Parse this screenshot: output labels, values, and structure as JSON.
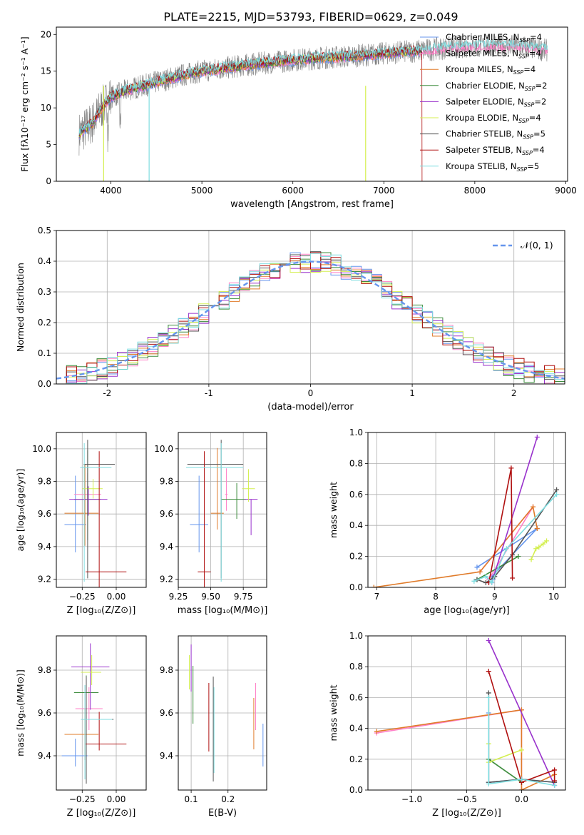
{
  "title": "PLATE=2215, MJD=53793, FIBERID=0629, z=0.049",
  "colors": {
    "Chabrier MILES": "#6495ed",
    "Salpeter MILES": "#ff82c8",
    "Kroupa MILES": "#e07b2a",
    "Chabrier ELODIE": "#3c8c3c",
    "Salpeter ELODIE": "#9932cc",
    "Kroupa ELODIE": "#d4ef50",
    "Chabrier STELIB": "#555555",
    "Salpeter STELIB": "#b01010",
    "Kroupa STELIB": "#7fdde0"
  },
  "chart_data": [
    {
      "id": "spectrum",
      "type": "line",
      "xlabel": "wavelength [Angstrom, rest frame]",
      "ylabel": "Flux [fλ10⁻¹⁷ erg cm⁻² s⁻¹ A⁻¹]",
      "xlim": [
        3400,
        9020
      ],
      "ylim": [
        0,
        21
      ],
      "xticks": [
        4000,
        5000,
        6000,
        7000,
        8000,
        9000
      ],
      "yticks": [
        0,
        5,
        10,
        15,
        20
      ],
      "legend_position": "top-right",
      "legend": [
        {
          "name": "Chabrier MILES, N",
          "sub": "SSP",
          "tail": "=4"
        },
        {
          "name": "Salpeter MILES, N",
          "sub": "SSP",
          "tail": "=4"
        },
        {
          "name": "Kroupa MILES, N",
          "sub": "SSP",
          "tail": "=4"
        },
        {
          "name": "Chabrier ELODIE, N",
          "sub": "SSP",
          "tail": "=2"
        },
        {
          "name": "Salpeter ELODIE, N",
          "sub": "SSP",
          "tail": "=2"
        },
        {
          "name": "Kroupa ELODIE, N",
          "sub": "SSP",
          "tail": "=4"
        },
        {
          "name": "Chabrier STELIB, N",
          "sub": "SSP",
          "tail": "=5"
        },
        {
          "name": "Salpeter STELIB, N",
          "sub": "SSP",
          "tail": "=4"
        },
        {
          "name": "Kroupa STELIB, N",
          "sub": "SSP",
          "tail": "=5"
        }
      ],
      "continuum": {
        "x": [
          3650,
          3800,
          3900,
          4000,
          4200,
          4500,
          4800,
          5000,
          5300,
          5600,
          6000,
          6300,
          6600,
          7000,
          7400,
          7800,
          8200,
          8500,
          8800
        ],
        "y": [
          6.5,
          8,
          10,
          11.5,
          12.5,
          13.5,
          14.5,
          15,
          15.5,
          16,
          16.5,
          16.8,
          17,
          17.4,
          17.8,
          18.3,
          18.5,
          18.4,
          17.8
        ]
      },
      "data_range": [
        3650,
        8800
      ],
      "model_range": [
        3650,
        7420
      ]
    },
    {
      "id": "residuals",
      "type": "line",
      "xlabel": "(data-model)/error",
      "ylabel": "Normed distribution",
      "xlim": [
        -2.5,
        2.5
      ],
      "ylim": [
        0,
        0.5
      ],
      "xticks": [
        -2,
        -1,
        0,
        1,
        2
      ],
      "yticks": [
        0.0,
        0.1,
        0.2,
        0.3,
        0.4,
        0.5
      ],
      "legend_position": "top-right",
      "legend": [
        "𝒩(0, 1)"
      ],
      "gaussian": {
        "mean": 0,
        "sigma": 1
      }
    },
    {
      "id": "age-vs-Z",
      "type": "scatter",
      "xlabel": "Z [log₁₀(Z/Z⊙)]",
      "ylabel": "age  [log₁₀(age/yr)]",
      "xlim": [
        -0.44,
        0.22
      ],
      "ylim": [
        9.15,
        10.1
      ],
      "xticks": [
        -0.25,
        0.0
      ],
      "xtick_labels": [
        "−0.25",
        "0.00"
      ],
      "yticks": [
        9.2,
        9.4,
        9.6,
        9.8,
        10.0
      ],
      "points": [
        {
          "model": "Chabrier MILES",
          "x": -0.3,
          "xerr": [
            0.08,
            0.08
          ],
          "y": 9.535,
          "yerr": [
            0.17,
            0.3
          ]
        },
        {
          "model": "Salpeter MILES",
          "x": -0.21,
          "xerr": [
            0.1,
            0.1
          ],
          "y": 9.72,
          "yerr": [
            0.1,
            0.13
          ]
        },
        {
          "model": "Kroupa MILES",
          "x": -0.23,
          "xerr": [
            0.15,
            0.1
          ],
          "y": 9.605,
          "yerr": [
            0.2,
            0.3
          ]
        },
        {
          "model": "Chabrier ELODIE",
          "x": -0.21,
          "xerr": [
            0.1,
            0.1
          ],
          "y": 9.69,
          "yerr": [
            0.25,
            0.3
          ]
        },
        {
          "model": "Salpeter ELODIE",
          "x": -0.205,
          "xerr": [
            0.14,
            0.14
          ],
          "y": 9.69,
          "yerr": [
            0.1,
            0.08
          ]
        },
        {
          "model": "Kroupa ELODIE",
          "x": -0.17,
          "xerr": [
            0.08,
            0.07
          ],
          "y": 9.755,
          "yerr": [
            0.06,
            0.06
          ]
        },
        {
          "model": "Chabrier STELIB",
          "x": -0.21,
          "xerr": [
            0.03,
            0.2
          ],
          "y": 9.905,
          "yerr": [
            0.7,
            0.15
          ]
        },
        {
          "model": "Salpeter STELIB",
          "x": -0.125,
          "xerr": [
            0.1,
            0.2
          ],
          "y": 9.245,
          "yerr": [
            0.3,
            0.74
          ]
        },
        {
          "model": "Kroupa STELIB",
          "x": -0.235,
          "xerr": [
            0.03,
            0.2
          ],
          "y": 9.885,
          "yerr": [
            0.7,
            0.15
          ]
        }
      ]
    },
    {
      "id": "age-vs-mass",
      "type": "scatter",
      "xlabel": "mass [log₁₀(M/M⊙)]",
      "ylabel": "",
      "xlim": [
        9.25,
        9.93
      ],
      "ylim": [
        9.15,
        10.1
      ],
      "xticks": [
        9.25,
        9.5,
        9.75
      ],
      "xtick_labels": [
        "9.25",
        "9.50",
        "9.75"
      ],
      "yticks": [
        9.2,
        9.4,
        9.6,
        9.8,
        10.0
      ],
      "points": [
        {
          "model": "Chabrier MILES",
          "x": 9.41,
          "xerr": [
            0.07,
            0.07
          ],
          "y": 9.535,
          "yerr": [
            0.17,
            0.3
          ]
        },
        {
          "model": "Salpeter MILES",
          "x": 9.62,
          "xerr": [
            0.01,
            0.01
          ],
          "y": 9.72,
          "yerr": [
            0.1,
            0.16
          ]
        },
        {
          "model": "Kroupa MILES",
          "x": 9.55,
          "xerr": [
            0.05,
            0.05
          ],
          "y": 9.605,
          "yerr": [
            0.1,
            0.4
          ]
        },
        {
          "model": "Chabrier ELODIE",
          "x": 9.7,
          "xerr": [
            0.12,
            0.07
          ],
          "y": 9.69,
          "yerr": [
            0.12,
            0.1
          ]
        },
        {
          "model": "Salpeter ELODIE",
          "x": 9.81,
          "xerr": [
            0.05,
            0.05
          ],
          "y": 9.69,
          "yerr": [
            0.22,
            0.0
          ]
        },
        {
          "model": "Kroupa ELODIE",
          "x": 9.79,
          "xerr": [
            0.05,
            0.05
          ],
          "y": 9.755,
          "yerr": [
            0.08,
            0.12
          ]
        },
        {
          "model": "Chabrier STELIB",
          "x": 9.58,
          "xerr": [
            0.26,
            0.17
          ],
          "y": 9.905,
          "yerr": [
            0.7,
            0.15
          ]
        },
        {
          "model": "Salpeter STELIB",
          "x": 9.45,
          "xerr": [
            0.05,
            0.05
          ],
          "y": 9.245,
          "yerr": [
            0.3,
            0.74
          ]
        },
        {
          "model": "Kroupa STELIB",
          "x": 9.58,
          "xerr": [
            0.27,
            0.17
          ],
          "y": 9.885,
          "yerr": [
            0.7,
            0.15
          ]
        }
      ]
    },
    {
      "id": "massweight-vs-age",
      "type": "line",
      "xlabel": "age  [log₁₀(age/yr)]",
      "ylabel": "mass weight",
      "xlim": [
        6.85,
        10.2
      ],
      "ylim": [
        0,
        1.0
      ],
      "xticks": [
        7,
        8,
        9,
        10
      ],
      "yticks": [
        0.0,
        0.2,
        0.4,
        0.6,
        0.8,
        1.0
      ],
      "series": [
        {
          "model": "Chabrier MILES",
          "x": [
            8.7,
            9.72,
            8.95,
            8.97
          ],
          "y": [
            0.13,
            0.38,
            0.07,
            0.05
          ]
        },
        {
          "model": "Salpeter MILES",
          "x": [
            8.75,
            9.65,
            8.9
          ],
          "y": [
            0.1,
            0.52,
            0.05
          ]
        },
        {
          "model": "Kroupa MILES",
          "x": [
            6.95,
            8.75,
            9.65,
            9.72
          ],
          "y": [
            0.0,
            0.1,
            0.52,
            0.38
          ]
        },
        {
          "model": "Chabrier ELODIE",
          "x": [
            8.7,
            9.4
          ],
          "y": [
            0.05,
            0.2
          ]
        },
        {
          "model": "Salpeter ELODIE",
          "x": [
            8.95,
            9.72
          ],
          "y": [
            0.03,
            0.97
          ]
        },
        {
          "model": "Kroupa ELODIE",
          "x": [
            9.62,
            9.7,
            9.75,
            9.82,
            9.88
          ],
          "y": [
            0.18,
            0.25,
            0.26,
            0.28,
            0.3
          ]
        },
        {
          "model": "Chabrier STELIB",
          "x": [
            8.7,
            8.85,
            9.0,
            9.3,
            10.05
          ],
          "y": [
            0.05,
            0.03,
            0.07,
            0.21,
            0.63
          ]
        },
        {
          "model": "Salpeter STELIB",
          "x": [
            8.9,
            9.28,
            9.3
          ],
          "y": [
            0.03,
            0.77,
            0.06
          ]
        },
        {
          "model": "Kroupa STELIB",
          "x": [
            8.65,
            8.85,
            8.95,
            9.2,
            10.05
          ],
          "y": [
            0.04,
            0.07,
            0.03,
            0.25,
            0.6
          ]
        }
      ]
    },
    {
      "id": "mass-vs-Z",
      "type": "scatter",
      "xlabel": "Z [log₁₀(Z/Z⊙)]",
      "ylabel": "mass [log₁₀(M/M⊙)]",
      "xlim": [
        -0.44,
        0.22
      ],
      "ylim": [
        9.24,
        9.96
      ],
      "xticks": [
        -0.25,
        0.0
      ],
      "xtick_labels": [
        "−0.25",
        "0.00"
      ],
      "yticks": [
        9.4,
        9.6,
        9.8
      ],
      "points": [
        {
          "model": "Chabrier MILES",
          "x": -0.3,
          "xerr": [
            0.1,
            0.09
          ],
          "y": 9.4,
          "yerr": [
            0.05,
            0.08
          ]
        },
        {
          "model": "Salpeter MILES",
          "x": -0.2,
          "xerr": [
            0.1,
            0.1
          ],
          "y": 9.62,
          "yerr": [
            0.1,
            0.1
          ]
        },
        {
          "model": "Kroupa MILES",
          "x": -0.23,
          "xerr": [
            0.15,
            0.1
          ],
          "y": 9.5,
          "yerr": [
            0.12,
            0.12
          ]
        },
        {
          "model": "Chabrier ELODIE",
          "x": -0.22,
          "xerr": [
            0.09,
            0.09
          ],
          "y": 9.695,
          "yerr": [
            0.1,
            0.08
          ]
        },
        {
          "model": "Salpeter ELODIE",
          "x": -0.19,
          "xerr": [
            0.14,
            0.14
          ],
          "y": 9.815,
          "yerr": [
            0.2,
            0.11
          ]
        },
        {
          "model": "Kroupa ELODIE",
          "x": -0.18,
          "xerr": [
            0.08,
            0.07
          ],
          "y": 9.79,
          "yerr": [
            0.06,
            0.08
          ]
        },
        {
          "model": "Chabrier STELIB",
          "x": -0.22,
          "xerr": [
            0.03,
            0.2
          ],
          "y": 9.57,
          "yerr": [
            0.3,
            0.2
          ]
        },
        {
          "model": "Salpeter STELIB",
          "x": -0.125,
          "xerr": [
            0.1,
            0.2
          ],
          "y": 9.455,
          "yerr": [
            0.03,
            0.15
          ]
        },
        {
          "model": "Kroupa STELIB",
          "x": -0.23,
          "xerr": [
            0.03,
            0.2
          ],
          "y": 9.57,
          "yerr": [
            0.28,
            0.16
          ]
        }
      ]
    },
    {
      "id": "mass-vs-EBV",
      "type": "scatter",
      "xlabel": "E(B-V)",
      "ylabel": "",
      "xlim": [
        0.065,
        0.305
      ],
      "ylim": [
        9.24,
        9.96
      ],
      "xticks": [
        0.1,
        0.2
      ],
      "xtick_labels": [
        "0.1",
        "0.2"
      ],
      "yticks": [
        9.4,
        9.6,
        9.8
      ],
      "points": [
        {
          "model": "Chabrier MILES",
          "x": 0.295,
          "y": 9.45,
          "yerr": [
            0.1,
            0.1
          ]
        },
        {
          "model": "Salpeter MILES",
          "x": 0.275,
          "y": 9.62,
          "yerr": [
            0.1,
            0.12
          ]
        },
        {
          "model": "Kroupa MILES",
          "x": 0.27,
          "y": 9.55,
          "yerr": [
            0.12,
            0.12
          ]
        },
        {
          "model": "Chabrier ELODIE",
          "x": 0.105,
          "y": 9.68,
          "yerr": [
            0.13,
            0.14
          ]
        },
        {
          "model": "Salpeter ELODIE",
          "x": 0.1,
          "y": 9.82,
          "yerr": [
            0.12,
            0.1
          ]
        },
        {
          "model": "Kroupa ELODIE",
          "x": 0.095,
          "y": 9.79,
          "yerr": [
            0.08,
            0.08
          ]
        },
        {
          "model": "Chabrier STELIB",
          "x": 0.16,
          "y": 9.57,
          "yerr": [
            0.29,
            0.2
          ]
        },
        {
          "model": "Salpeter STELIB",
          "x": 0.148,
          "y": 9.58,
          "yerr": [
            0.16,
            0.16
          ]
        },
        {
          "model": "Kroupa STELIB",
          "x": 0.162,
          "y": 9.57,
          "yerr": [
            0.25,
            0.15
          ]
        }
      ]
    },
    {
      "id": "massweight-vs-Z",
      "type": "line",
      "xlabel": "Z [log₁₀(Z/Z⊙)]",
      "ylabel": "mass weight",
      "xlim": [
        -1.4,
        0.4
      ],
      "ylim": [
        0,
        1.0
      ],
      "xticks": [
        -1.0,
        -0.5,
        0.0
      ],
      "xtick_labels": [
        "−1.0",
        "−0.5",
        "0.0"
      ],
      "yticks": [
        0.0,
        0.2,
        0.4,
        0.6,
        0.8,
        1.0
      ],
      "series": [
        {
          "model": "Chabrier MILES",
          "x": [
            -0.3,
            -0.3,
            0.0,
            0.3
          ],
          "y": [
            0.5,
            0.05,
            0.07,
            0.05
          ]
        },
        {
          "model": "Salpeter MILES",
          "x": [
            -1.32,
            0.0,
            0.0
          ],
          "y": [
            0.37,
            0.52,
            0.0
          ]
        },
        {
          "model": "Kroupa MILES",
          "x": [
            -1.32,
            0.0,
            0.0,
            0.3
          ],
          "y": [
            0.38,
            0.52,
            0.0,
            0.1
          ]
        },
        {
          "model": "Chabrier ELODIE",
          "x": [
            -0.3,
            0.0
          ],
          "y": [
            0.2,
            0.05
          ]
        },
        {
          "model": "Salpeter ELODIE",
          "x": [
            -0.3,
            0.3
          ],
          "y": [
            0.97,
            0.03
          ]
        },
        {
          "model": "Kroupa ELODIE",
          "x": [
            -0.3,
            -0.3,
            0.0
          ],
          "y": [
            0.3,
            0.18,
            0.26
          ]
        },
        {
          "model": "Chabrier STELIB",
          "x": [
            -0.3,
            -0.3,
            0.0,
            0.3
          ],
          "y": [
            0.63,
            0.05,
            0.07,
            0.05
          ]
        },
        {
          "model": "Salpeter STELIB",
          "x": [
            -0.3,
            0.0,
            0.3,
            0.3
          ],
          "y": [
            0.77,
            0.05,
            0.13,
            0.06
          ]
        },
        {
          "model": "Kroupa STELIB",
          "x": [
            -0.3,
            -0.3,
            0.0,
            0.3
          ],
          "y": [
            0.6,
            0.04,
            0.07,
            0.03
          ]
        }
      ]
    }
  ]
}
